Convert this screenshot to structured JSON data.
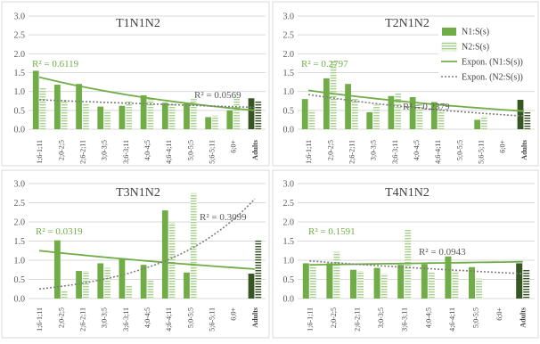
{
  "colors": {
    "n1": "#70ad47",
    "n1_adults": "#375623",
    "n2_stripe": "#a9d18e",
    "n2_adults_stripe": "#375623",
    "trend_n1": "#70ad47",
    "trend_n2": "#7f7f7f",
    "grid": "#d9d9d9"
  },
  "legend": {
    "items": [
      "N1:S(s)",
      "N2:S(s)",
      "Expon. (N1:S(s))",
      "Expon. (N2:S(s))"
    ]
  },
  "chart_data": [
    {
      "type": "bar",
      "title": "T1N1N2",
      "ylim": [
        0,
        3
      ],
      "yticks": [
        "0.0",
        "0.5",
        "1.0",
        "1.5",
        "2.0",
        "2.5",
        "3.0"
      ],
      "categories": [
        "1;6-1;11",
        "2;0-2;5",
        "2;6-2;11",
        "3;0-3;5",
        "3;6-3;11",
        "4;0-4;5",
        "4;6-4;11",
        "5;0-5;5",
        "5;6-5;11",
        "6;0+",
        "Adults"
      ],
      "series": [
        {
          "name": "N1:S(s)",
          "values": [
            1.55,
            1.18,
            1.2,
            0.6,
            0.62,
            0.9,
            0.7,
            0.7,
            0.32,
            0.5,
            0.82
          ]
        },
        {
          "name": "N2:S(s)",
          "values": [
            1.1,
            0.78,
            0.68,
            0.5,
            0.75,
            0.8,
            0.68,
            0.8,
            0.36,
            0.85,
            0.75
          ]
        }
      ],
      "trend_n1": {
        "start": 1.38,
        "end": 0.5
      },
      "trend_n2": {
        "start": 0.78,
        "end": 0.58
      },
      "r2_n1": "R² = 0.6119",
      "r2_n2": "R² = 0.0569"
    },
    {
      "type": "bar",
      "title": "T2N1N2",
      "ylim": [
        0,
        3
      ],
      "yticks": [
        "0.0",
        "0.5",
        "1.0",
        "1.5",
        "2.0",
        "2.5",
        "3.0"
      ],
      "categories": [
        "1;6-1;11",
        "2;0-2;5",
        "2;6-2;11",
        "3;0-3;5",
        "3;6-3;11",
        "4;0-4;5",
        "4;6-4;11",
        "5;0-5;5",
        "5;6-5;11",
        "6;0+",
        "Adults"
      ],
      "series": [
        {
          "name": "N1:S(s)",
          "values": [
            0.8,
            1.35,
            1.2,
            0.45,
            0.88,
            0.85,
            0.72,
            0,
            0.25,
            0,
            0.78
          ]
        },
        {
          "name": "N2:S(s)",
          "values": [
            0.5,
            1.8,
            0.8,
            0.65,
            0.95,
            0.7,
            0.55,
            0,
            0.35,
            0,
            0.45
          ]
        }
      ],
      "trend_n1": {
        "start": 1.03,
        "end": 0.48
      },
      "trend_n2": {
        "start": 0.92,
        "end": 0.35
      },
      "r2_n1": "R² = 0.2797",
      "r2_n2": "R² = 0.2379"
    },
    {
      "type": "bar",
      "title": "T3N1N2",
      "ylim": [
        0,
        3
      ],
      "yticks": [
        "0.0",
        "0.5",
        "1.0",
        "1.5",
        "2.0",
        "2.5",
        "3.0"
      ],
      "categories": [
        "1;6-1;11",
        "2;0-2;5",
        "2;6-2;11",
        "3;0-3;5",
        "3;6-3;11",
        "4;0-4;5",
        "4;6-4;11",
        "5;0-5;5",
        "5;6-5;11",
        "6;0+",
        "Adults"
      ],
      "series": [
        {
          "name": "N1:S(s)",
          "values": [
            0,
            1.52,
            0.72,
            0.92,
            1.05,
            0.88,
            2.3,
            0.68,
            0,
            0,
            0.65
          ]
        },
        {
          "name": "N2:S(s)",
          "values": [
            0,
            0.2,
            0.72,
            0.8,
            0.35,
            0.48,
            1.98,
            2.75,
            0,
            0,
            1.52
          ]
        }
      ],
      "trend_n1": {
        "start": 1.25,
        "end": 0.77
      },
      "trend_n2": {
        "start": 0.25,
        "end": 2.6
      },
      "r2_n1": "R² = 0.0319",
      "r2_n2": "R² = 0.3099"
    },
    {
      "type": "bar",
      "title": "T4N1N2",
      "ylim": [
        0,
        3
      ],
      "yticks": [
        "0.0",
        "0.5",
        "1.0",
        "1.5",
        "2.0",
        "2.5",
        "3.0"
      ],
      "categories": [
        "1;6-1;11",
        "2;0-2;5",
        "2;6-2;11",
        "3;0-3;5",
        "3;6-3;11",
        "4;0-4;5",
        "4;6-4;11",
        "5;0-5;5",
        "6;0+",
        "Adults"
      ],
      "series": [
        {
          "name": "N1:S(s)",
          "values": [
            0.92,
            0.92,
            0.75,
            0.8,
            0.88,
            0.9,
            1.1,
            0.82,
            0,
            0.92
          ]
        },
        {
          "name": "N2:S(s)",
          "values": [
            0.85,
            1.22,
            0.72,
            0.65,
            1.82,
            0.68,
            0.72,
            0.52,
            0,
            0.75
          ]
        }
      ],
      "trend_n1": {
        "start": 0.88,
        "end": 0.96
      },
      "trend_n2": {
        "start": 0.98,
        "end": 0.65
      },
      "r2_n1": "R² = 0.1591",
      "r2_n2": "R² = 0.0943"
    }
  ]
}
